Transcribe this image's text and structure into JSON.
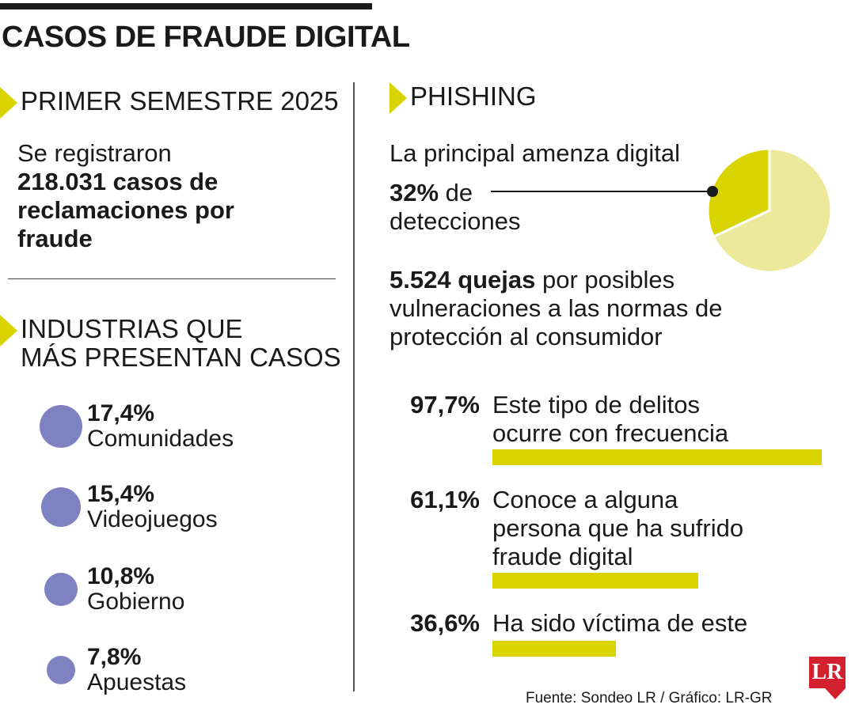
{
  "title": "CASOS DE FRAUDE DIGITAL",
  "colors": {
    "accent_yellow": "#d9d300",
    "pie_light": "#ede99a",
    "bubble": "#7f82c1",
    "logo_red": "#d3202f"
  },
  "semester": {
    "heading": "PRIMER SEMESTRE 2025",
    "text_intro": "Se registraron",
    "highlight_lines": [
      "218.031 casos de",
      "reclamaciones por",
      "fraude"
    ]
  },
  "industries": {
    "heading_lines": [
      "INDUSTRIAS QUE",
      "MÁS PRESENTAN CASOS"
    ],
    "items": [
      {
        "pct": "17,4%",
        "label": "Comunidades"
      },
      {
        "pct": "15,4%",
        "label": "Videojuegos"
      },
      {
        "pct": "10,8%",
        "label": "Gobierno"
      },
      {
        "pct": "7,8%",
        "label": "Apuestas"
      }
    ]
  },
  "phishing": {
    "heading": "PHISHING",
    "subtitle": "La principal amenza digital",
    "detection_pct": "32%",
    "detection_de": " de",
    "detection_label": "detecciones",
    "quejas_bold": "5.524 quejas",
    "quejas_rest": " por posibles vulneraciones a las normas de protección al consumidor"
  },
  "chart_data": [
    {
      "type": "pie",
      "title": "",
      "slices": [
        {
          "label": "Phishing",
          "value": 32
        },
        {
          "label": "",
          "value": 68
        }
      ]
    },
    {
      "type": "bar",
      "orientation": "horizontal",
      "categories": [
        "Este tipo de delitos ocurre con frecuencia",
        "Conoce a alguna persona que ha sufrido fraude digital",
        "Ha sido víctima de este"
      ],
      "values": [
        97.7,
        61.1,
        36.6
      ],
      "value_labels": [
        "97,7%",
        "61,1%",
        "36,6%"
      ],
      "label_lines": [
        [
          "Este tipo de delitos",
          "ocurre con frecuencia"
        ],
        [
          "Conoce a alguna",
          "persona que ha sufrido",
          "fraude digital"
        ],
        [
          "Ha sido víctima de este"
        ]
      ],
      "xlim": [
        0,
        100
      ]
    },
    {
      "type": "scatter",
      "title": "",
      "categories": [
        "Comunidades",
        "Videojuegos",
        "Gobierno",
        "Apuestas"
      ],
      "values": [
        17.4,
        15.4,
        10.8,
        7.8
      ]
    }
  ],
  "source": "Fuente: Sondeo LR / Gráfico: LR-GR",
  "logo_text": "LR"
}
